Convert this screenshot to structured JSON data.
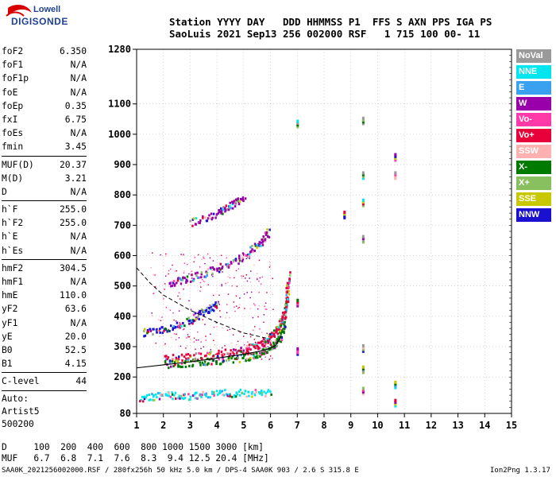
{
  "logo": {
    "line1": "Lowell",
    "line2": "DIGISONDE"
  },
  "header": {
    "row1": "Station YYYY DAY   DDD HHMMSS P1  FFS S AXN PPS IGA PS",
    "row2": "SaoLuis 2021 Sep13 256 002000 RSF   1 715 100 00- 11"
  },
  "params": [
    {
      "label": "foF2",
      "value": "6.350"
    },
    {
      "label": "foF1",
      "value": "N/A"
    },
    {
      "label": "foF1p",
      "value": "N/A"
    },
    {
      "label": "foE",
      "value": "N/A"
    },
    {
      "label": "foEp",
      "value": "0.35"
    },
    {
      "label": "fxI",
      "value": "6.75"
    },
    {
      "label": "foEs",
      "value": "N/A"
    },
    {
      "label": "fmin",
      "value": "3.45"
    },
    {
      "sep": true
    },
    {
      "label": "MUF(D)",
      "value": "20.37"
    },
    {
      "label": "M(D)",
      "value": "3.21"
    },
    {
      "label": "D",
      "value": "N/A"
    },
    {
      "sep": true
    },
    {
      "label": "h`F",
      "value": "255.0"
    },
    {
      "label": "h`F2",
      "value": "255.0"
    },
    {
      "label": "h`E",
      "value": "N/A"
    },
    {
      "label": "h`Es",
      "value": "N/A"
    },
    {
      "sep": true
    },
    {
      "label": "hmF2",
      "value": "304.5"
    },
    {
      "label": "hmF1",
      "value": "N/A"
    },
    {
      "label": "hmE",
      "value": "110.0"
    },
    {
      "label": "yF2",
      "value": "63.6"
    },
    {
      "label": "yF1",
      "value": "N/A"
    },
    {
      "label": "yE",
      "value": "20.0"
    },
    {
      "label": "B0",
      "value": "52.5"
    },
    {
      "label": "B1",
      "value": "4.15"
    },
    {
      "sep": true
    },
    {
      "label": "C-level",
      "value": "44"
    },
    {
      "sep": true
    },
    {
      "plain": "Auto:"
    },
    {
      "plain": "Artist5"
    },
    {
      "plain": "500200"
    }
  ],
  "legend": [
    {
      "label": "NoVal",
      "color": "#9a9a9a"
    },
    {
      "label": "NNE",
      "color": "#00e5ee"
    },
    {
      "label": "E",
      "color": "#3aa0f0"
    },
    {
      "label": "W",
      "color": "#9900aa"
    },
    {
      "label": "Vo-",
      "color": "#ff3aa8"
    },
    {
      "label": "Vo+",
      "color": "#e8003a"
    },
    {
      "label": "SSW",
      "color": "#ffb0b0"
    },
    {
      "label": "X-",
      "color": "#007a00"
    },
    {
      "label": "X+",
      "color": "#88c060"
    },
    {
      "label": "SSE",
      "color": "#c8c800"
    },
    {
      "label": "NNW",
      "color": "#1a10d0"
    }
  ],
  "footer": {
    "line1": "D     100  200  400  600  800 1000 1500 3000 [km]",
    "line2": "MUF   6.7  6.8  7.1  7.6  8.3  9.4 12.5 20.4 [MHz]",
    "line3": "SAA0K_2021256002000.RSF / 280fx256h 50 kHz 5.0 km / DPS-4 SAA0K 903 / 2.6 S 315.8 E",
    "line4": "Ion2Png 1.3.17"
  },
  "chart_data": {
    "type": "scatter",
    "xlim": [
      1,
      15
    ],
    "ylim": [
      80,
      1280
    ],
    "xticks": [
      1,
      2,
      3,
      4,
      5,
      6,
      7,
      8,
      9,
      10,
      11,
      12,
      13,
      14,
      15
    ],
    "yticks": [
      80,
      200,
      300,
      400,
      500,
      600,
      700,
      800,
      900,
      1000,
      1100,
      1280
    ],
    "grid": true,
    "legend_position": "right",
    "traces": [
      {
        "name": "o-trace",
        "color": "#e8003a",
        "points": [
          [
            2.0,
            262
          ],
          [
            3.0,
            268
          ],
          [
            4.0,
            278
          ],
          [
            5.0,
            292
          ],
          [
            5.6,
            310
          ],
          [
            6.0,
            335
          ],
          [
            6.3,
            370
          ],
          [
            6.5,
            410
          ],
          [
            6.6,
            470
          ],
          [
            6.65,
            540
          ]
        ]
      },
      {
        "name": "x-trace",
        "color": "#007a00",
        "points": [
          [
            2.0,
            245
          ],
          [
            3.0,
            250
          ],
          [
            4.0,
            256
          ],
          [
            5.0,
            266
          ],
          [
            5.6,
            282
          ],
          [
            6.0,
            300
          ],
          [
            6.3,
            330
          ],
          [
            6.5,
            380
          ]
        ]
      },
      {
        "name": "second-hop",
        "color": "#9900aa",
        "points": [
          [
            2.2,
            510
          ],
          [
            3.0,
            530
          ],
          [
            4.0,
            560
          ],
          [
            5.0,
            600
          ],
          [
            5.6,
            645
          ],
          [
            5.9,
            680
          ]
        ]
      },
      {
        "name": "upper-hop",
        "color": "#9900aa",
        "points": [
          [
            3.0,
            710
          ],
          [
            4.0,
            740
          ],
          [
            4.5,
            770
          ],
          [
            5.0,
            790
          ]
        ]
      },
      {
        "name": "sporadic-low",
        "color": "#00e5ee",
        "points": [
          [
            1.1,
            130
          ],
          [
            2.0,
            145
          ],
          [
            3.0,
            140
          ],
          [
            4.0,
            150
          ],
          [
            5.0,
            150
          ],
          [
            6.0,
            152
          ]
        ]
      },
      {
        "name": "scatter-mid",
        "color": "#1a10d0",
        "points": [
          [
            1.2,
            350
          ],
          [
            2.0,
            360
          ],
          [
            3.0,
            390
          ],
          [
            3.5,
            420
          ],
          [
            4.0,
            440
          ]
        ]
      }
    ],
    "profile_curve": [
      [
        1.0,
        230
      ],
      [
        2.0,
        240
      ],
      [
        3.0,
        250
      ],
      [
        4.0,
        262
      ],
      [
        5.0,
        275
      ],
      [
        5.6,
        285
      ],
      [
        6.0,
        295
      ],
      [
        6.2,
        305
      ],
      [
        6.4,
        335
      ]
    ],
    "dashed_curve": [
      [
        1.0,
        560
      ],
      [
        1.5,
        510
      ],
      [
        2.0,
        470
      ],
      [
        3.0,
        420
      ],
      [
        4.0,
        380
      ],
      [
        5.0,
        345
      ],
      [
        6.0,
        325
      ]
    ],
    "freq_columns": [
      {
        "x": 7.0,
        "y": [
          1030,
          440,
          280
        ]
      },
      {
        "x": 9.45,
        "y": [
          1040,
          860,
          770,
          650,
          290,
          220,
          150
        ]
      },
      {
        "x": 10.65,
        "y": [
          920,
          860,
          170,
          110
        ]
      },
      {
        "x": 8.75,
        "y": [
          730
        ]
      }
    ]
  }
}
